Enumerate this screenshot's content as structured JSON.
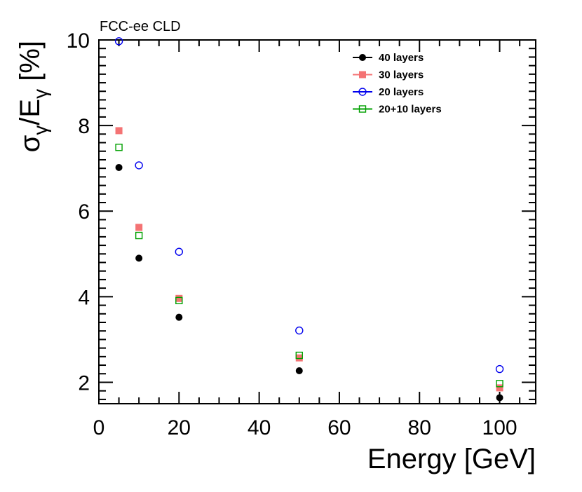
{
  "chart_data": {
    "type": "scatter",
    "annotation": "FCC-ee CLD",
    "xlabel": "Energy [GeV]",
    "ylabel": {
      "main": "σ",
      "sub1": "γ",
      "mid": "/E",
      "sub2": "γ",
      "unit": " [%]"
    },
    "xlim": [
      0,
      109
    ],
    "ylim": [
      1.5,
      10
    ],
    "xticks": [
      0,
      20,
      40,
      60,
      80,
      100
    ],
    "xtick_labels": [
      "0",
      "20",
      "40",
      "60",
      "80",
      "100"
    ],
    "yticks": [
      2,
      4,
      6,
      8,
      10
    ],
    "ytick_labels": [
      "2",
      "4",
      "6",
      "8",
      "10"
    ],
    "legend_position": "top-right",
    "series": [
      {
        "name": "40 layers",
        "marker": "filled-circle",
        "color": "#000000",
        "x": [
          5,
          10,
          20,
          50,
          100
        ],
        "y": [
          7.02,
          4.9,
          3.52,
          2.27,
          1.64
        ]
      },
      {
        "name": "30 layers",
        "marker": "filled-square",
        "color": "#f47374",
        "x": [
          5,
          10,
          20,
          50,
          100
        ],
        "y": [
          7.88,
          5.62,
          3.96,
          2.57,
          1.87
        ]
      },
      {
        "name": "20 layers",
        "marker": "open-circle",
        "color": "#0000ee",
        "x": [
          5,
          10,
          20,
          50,
          100
        ],
        "y": [
          9.97,
          7.07,
          5.05,
          3.21,
          2.31
        ]
      },
      {
        "name": "20+10 layers",
        "marker": "open-square",
        "color": "#00a000",
        "x": [
          5,
          10,
          20,
          50,
          100
        ],
        "y": [
          7.49,
          5.43,
          3.91,
          2.63,
          1.97
        ]
      }
    ]
  }
}
